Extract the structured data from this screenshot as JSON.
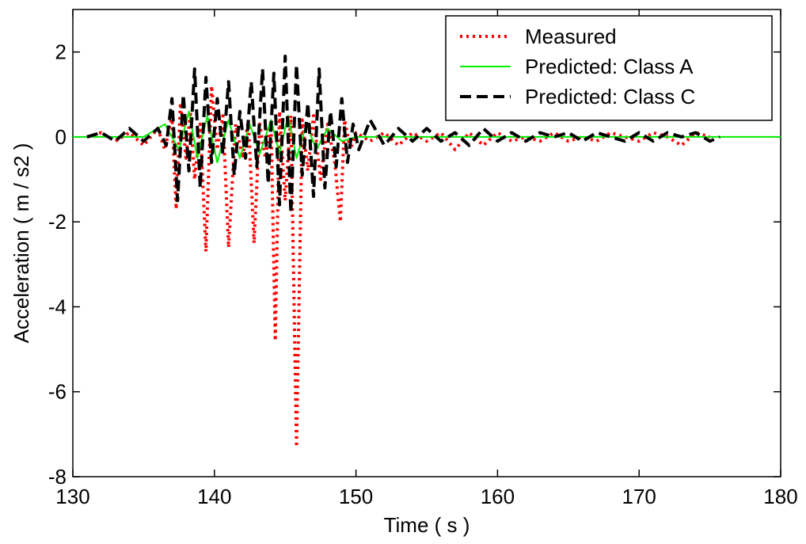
{
  "chart_data": {
    "type": "line",
    "title": "",
    "xlabel": "Time ( s )",
    "ylabel": "Acceleration ( m / s2 )",
    "xlim": [
      130,
      180
    ],
    "ylim": [
      -8,
      3
    ],
    "xticks": [
      130,
      140,
      150,
      160,
      170,
      180
    ],
    "yticks": [
      -8,
      -6,
      -4,
      -2,
      0,
      2
    ],
    "grid": false,
    "legend": {
      "placement": "top-right"
    },
    "series": [
      {
        "name": "Measured",
        "color": "#ff0000",
        "style": "dotted",
        "x": [
          131.0,
          132.0,
          133.0,
          134.0,
          135.0,
          136.0,
          136.5,
          137.0,
          137.3,
          137.6,
          138.0,
          138.3,
          138.6,
          139.0,
          139.4,
          139.8,
          140.2,
          140.6,
          141.0,
          141.5,
          142.0,
          142.4,
          142.8,
          143.2,
          143.6,
          144.0,
          144.3,
          144.6,
          145.0,
          145.4,
          145.8,
          146.2,
          146.6,
          147.0,
          147.5,
          148.0,
          148.5,
          148.9,
          149.2,
          149.6,
          150.0,
          151.0,
          152.0,
          153.0,
          154.0,
          155.0,
          156.0,
          157.0,
          158.0,
          159.0,
          160.0,
          161.0,
          162.0,
          163.0,
          164.0,
          165.0,
          166.0,
          167.0,
          168.0,
          169.0,
          170.0,
          171.0,
          172.0,
          173.0,
          174.0,
          175.0
        ],
        "y": [
          0.0,
          0.1,
          -0.1,
          0.1,
          -0.2,
          0.2,
          -0.3,
          0.5,
          -1.7,
          0.8,
          -0.5,
          0.6,
          -1.0,
          0.3,
          -2.7,
          1.2,
          -0.3,
          0.5,
          -2.6,
          0.3,
          -0.5,
          0.4,
          -2.5,
          0.3,
          -0.5,
          0.4,
          -4.8,
          0.6,
          -1.5,
          0.5,
          -7.3,
          0.4,
          -0.8,
          0.5,
          -1.0,
          0.3,
          -0.6,
          -2.0,
          0.4,
          -0.3,
          0.1,
          -0.1,
          0.1,
          -0.2,
          0.1,
          -0.1,
          0.1,
          -0.3,
          0.1,
          -0.2,
          0.1,
          -0.1,
          0.0,
          -0.1,
          0.1,
          -0.1,
          0.0,
          -0.1,
          0.1,
          0.0,
          -0.1,
          0.1,
          0.0,
          -0.2,
          0.1,
          0.0
        ]
      },
      {
        "name": "Predicted: Class A",
        "color": "#00ee00",
        "style": "solid",
        "x": [
          130.0,
          135.0,
          136.5,
          137.5,
          138.2,
          138.8,
          139.5,
          140.2,
          141.0,
          141.8,
          142.5,
          143.2,
          144.0,
          144.6,
          145.2,
          145.8,
          146.5,
          147.2,
          148.0,
          149.0,
          150.0,
          180.0
        ],
        "y": [
          0.0,
          0.0,
          0.3,
          -0.3,
          0.6,
          -0.5,
          0.5,
          -0.6,
          0.4,
          -0.5,
          0.3,
          -0.4,
          0.4,
          -0.4,
          0.5,
          -0.5,
          0.3,
          -0.3,
          0.2,
          -0.1,
          0.0,
          0.0
        ]
      },
      {
        "name": "Predicted: Class C",
        "color": "#000000",
        "style": "dashed",
        "x": [
          131.0,
          132.0,
          133.0,
          134.0,
          135.0,
          136.0,
          136.6,
          137.0,
          137.4,
          137.8,
          138.2,
          138.6,
          139.0,
          139.4,
          139.8,
          140.2,
          140.6,
          141.0,
          141.4,
          141.8,
          142.2,
          142.6,
          143.0,
          143.4,
          143.8,
          144.2,
          144.6,
          145.0,
          145.4,
          145.8,
          146.2,
          146.6,
          147.0,
          147.4,
          147.8,
          148.2,
          148.6,
          149.0,
          149.4,
          149.8,
          150.2,
          151.0,
          152.0,
          153.0,
          154.0,
          155.0,
          156.0,
          157.0,
          158.0,
          159.0,
          160.0,
          161.0,
          162.0,
          163.0,
          164.0,
          165.0,
          166.0,
          167.0,
          168.0,
          169.0,
          170.0,
          171.0,
          172.0,
          173.0,
          174.0,
          175.0,
          175.7
        ],
        "y": [
          0.0,
          0.1,
          -0.1,
          0.2,
          -0.1,
          0.2,
          -0.2,
          0.9,
          -1.5,
          1.0,
          -0.8,
          1.6,
          -1.2,
          1.4,
          -0.6,
          0.9,
          -0.4,
          1.3,
          -0.9,
          0.6,
          -0.5,
          1.3,
          -0.7,
          1.6,
          -1.1,
          1.5,
          -1.6,
          1.9,
          -1.8,
          1.7,
          -0.9,
          0.8,
          -1.4,
          1.6,
          -1.2,
          0.6,
          -0.7,
          0.9,
          -0.6,
          0.3,
          -0.3,
          0.4,
          -0.2,
          0.2,
          -0.1,
          0.2,
          -0.1,
          0.1,
          -0.2,
          0.2,
          -0.1,
          0.1,
          -0.1,
          0.1,
          0.0,
          0.1,
          -0.1,
          0.1,
          0.0,
          -0.1,
          0.1,
          -0.1,
          0.1,
          0.0,
          0.1,
          -0.1,
          0.0
        ]
      }
    ]
  }
}
